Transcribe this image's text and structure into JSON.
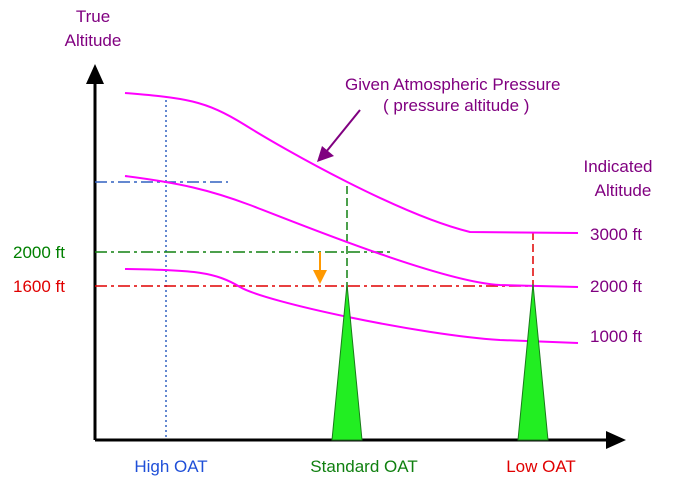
{
  "axes": {
    "y_label_line1": "True",
    "y_label_line2": "Altitude",
    "right_label_line1": "Indicated",
    "right_label_line2": "Altitude"
  },
  "annotation": {
    "line1": "Given Atmospheric Pressure",
    "line2": "( pressure altitude )"
  },
  "left_markers": [
    {
      "label": "2000 ft",
      "color": "#008000"
    },
    {
      "label": "1600 ft",
      "color": "#e00000"
    }
  ],
  "indicated_labels": [
    "3000 ft",
    "2000 ft",
    "1000 ft"
  ],
  "oat_labels": [
    {
      "label": "High OAT",
      "color": "#1f4fd8"
    },
    {
      "label": "Standard OAT",
      "color": "#108010"
    },
    {
      "label": "Low OAT",
      "color": "#e00000"
    }
  ],
  "colors": {
    "curves": "#ff00ff",
    "text_purple": "#800080",
    "axis": "#000000",
    "blue": "#3060c0",
    "green": "#108010",
    "red": "#e00000",
    "spike_fill": "#22ee22",
    "arrow_orange": "#ff9900"
  }
}
